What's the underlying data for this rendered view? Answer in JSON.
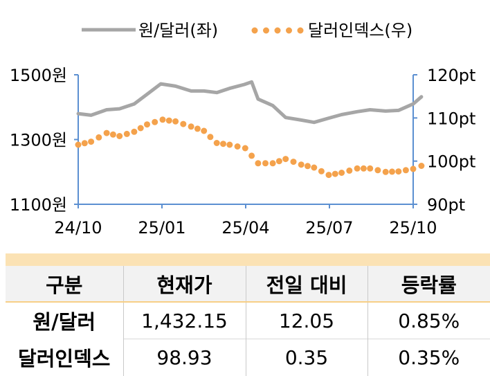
{
  "chart_data": {
    "type": "line",
    "legend": {
      "position": "top",
      "entries": [
        {
          "label": "원/달러(좌)",
          "color": "#a6a6a6",
          "style": "solid-line",
          "axis": "left"
        },
        {
          "label": "달러인덱스(우)",
          "color": "#f4a24c",
          "style": "dotted",
          "axis": "right"
        }
      ]
    },
    "x_tick_labels": [
      "24/10",
      "25/01",
      "25/04",
      "25/07",
      "25/10"
    ],
    "x_range": [
      "2024-10",
      "2025-10"
    ],
    "y_left": {
      "range": [
        1100,
        1500
      ],
      "tick_labels": [
        "1500원",
        "1300원",
        "1100원"
      ],
      "tick_values": [
        1500,
        1300,
        1100
      ]
    },
    "y_right": {
      "range": [
        90,
        120
      ],
      "tick_labels": [
        "120pt",
        "110pt",
        "100pt",
        "90pt"
      ],
      "tick_values": [
        120,
        110,
        100,
        90
      ]
    },
    "grid": false,
    "series": [
      {
        "name": "원/달러(좌)",
        "axis": "left",
        "x": [
          "2024-10-01",
          "2024-10-15",
          "2024-11-01",
          "2024-11-15",
          "2024-12-01",
          "2024-12-15",
          "2024-12-30",
          "2025-01-15",
          "2025-02-01",
          "2025-02-15",
          "2025-03-01",
          "2025-03-15",
          "2025-03-31",
          "2025-04-08",
          "2025-04-15",
          "2025-05-01",
          "2025-05-15",
          "2025-06-01",
          "2025-06-15",
          "2025-07-01",
          "2025-07-15",
          "2025-08-01",
          "2025-08-15",
          "2025-09-01",
          "2025-09-15",
          "2025-10-01",
          "2025-10-10"
        ],
        "values": [
          1380,
          1375,
          1392,
          1395,
          1410,
          1440,
          1472,
          1465,
          1450,
          1450,
          1445,
          1458,
          1470,
          1478,
          1425,
          1405,
          1368,
          1360,
          1353,
          1366,
          1377,
          1386,
          1392,
          1388,
          1390,
          1410,
          1432
        ]
      },
      {
        "name": "달러인덱스(우)",
        "axis": "right",
        "x": [
          "2024-10-01",
          "2024-10-15",
          "2024-11-01",
          "2024-11-15",
          "2024-12-01",
          "2024-12-15",
          "2025-01-01",
          "2025-01-15",
          "2025-02-01",
          "2025-02-15",
          "2025-03-01",
          "2025-03-15",
          "2025-04-01",
          "2025-04-15",
          "2025-05-01",
          "2025-05-15",
          "2025-06-01",
          "2025-06-15",
          "2025-07-01",
          "2025-07-15",
          "2025-08-01",
          "2025-08-15",
          "2025-09-01",
          "2025-09-15",
          "2025-10-01",
          "2025-10-10"
        ],
        "values": [
          103.8,
          104.5,
          106.5,
          105.8,
          106.8,
          108.5,
          109.6,
          109.2,
          108.0,
          107.0,
          104.2,
          103.8,
          103.0,
          99.5,
          99.5,
          100.5,
          99.2,
          98.5,
          96.8,
          97.3,
          98.3,
          98.3,
          97.5,
          97.6,
          98.2,
          98.9
        ]
      }
    ]
  },
  "table": {
    "headers": [
      "구분",
      "현재가",
      "전일 대비",
      "등락률"
    ],
    "rows": [
      {
        "name": "원/달러",
        "price": "1,432.15",
        "change": "12.05",
        "rate": "0.85%"
      },
      {
        "name": "달러인덱스",
        "price": "98.93",
        "change": "0.35",
        "rate": "0.35%"
      }
    ]
  }
}
